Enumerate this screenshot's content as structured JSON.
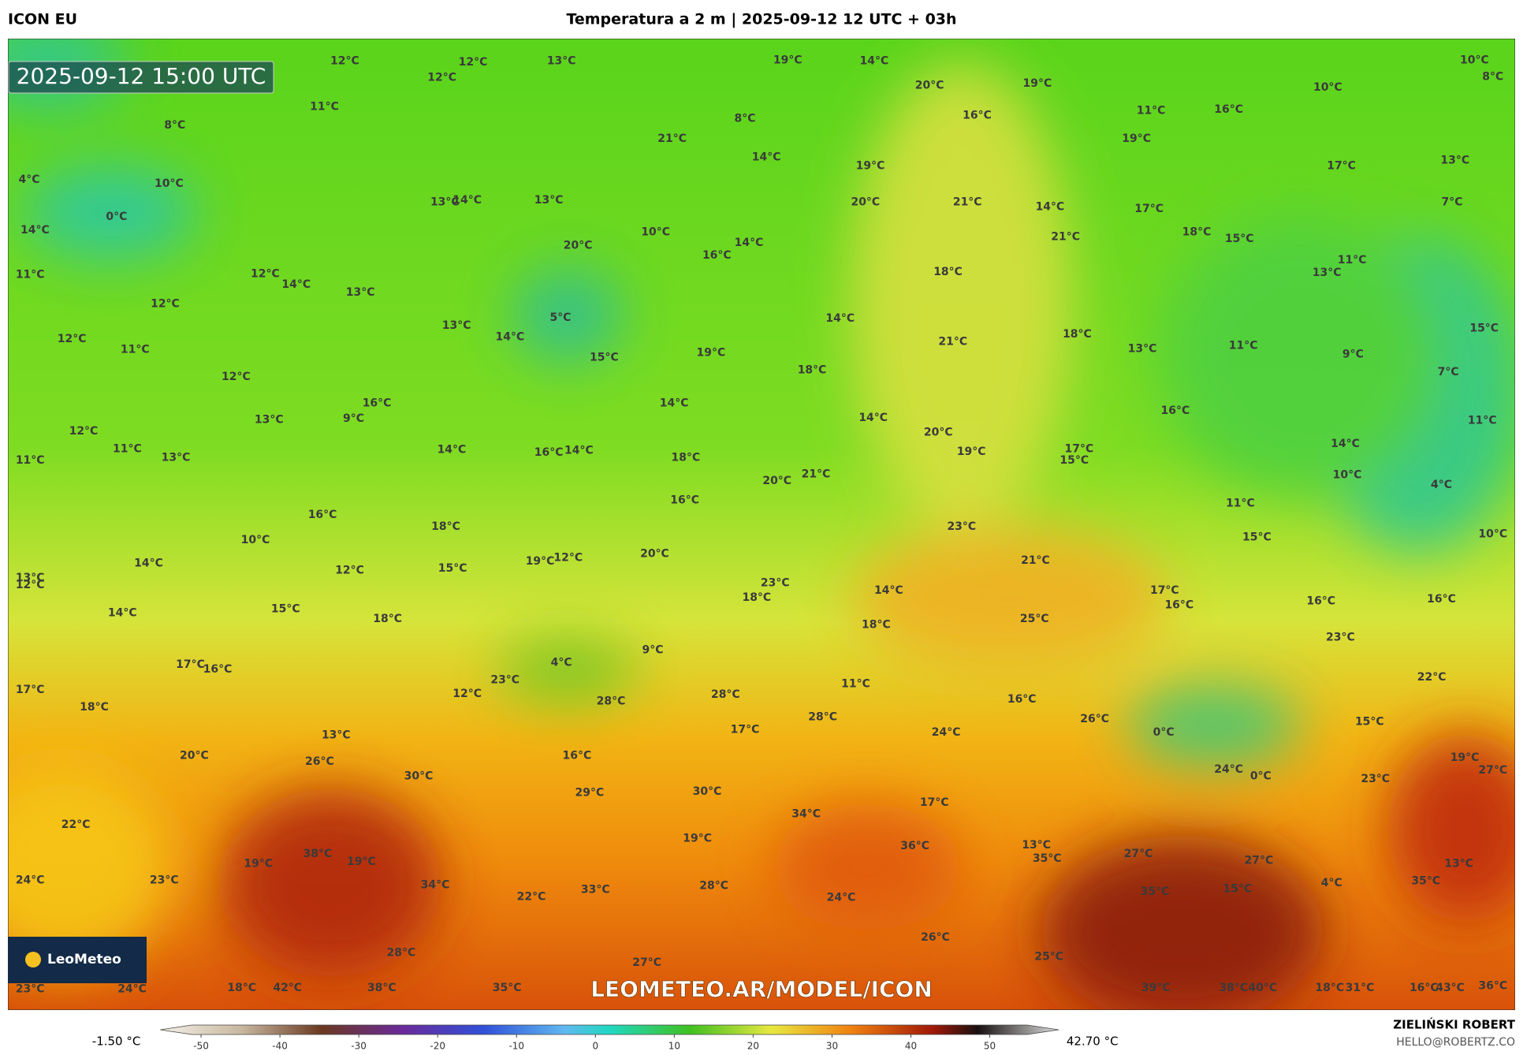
{
  "header": {
    "model": "ICON EU",
    "title": "Temperatura a 2 m | 2025-09-12 12 UTC + 03h"
  },
  "map": {
    "timestamp": "2025-09-12 15:00 UTC",
    "watermark": "LEOMETEO.AR/MODEL/ICON",
    "logo": "LeoMeteo",
    "labels": [
      "12°C",
      "12°C",
      "12°C",
      "13°C",
      "11°C",
      "8°C",
      "10°C",
      "0°C",
      "4°C",
      "14°C",
      "11°C",
      "12°C",
      "14°C",
      "13°C",
      "12°C",
      "12°C",
      "11°C",
      "13°C",
      "14°C",
      "5°C",
      "12°C",
      "16°C",
      "13°C",
      "9°C",
      "12°C",
      "11°C",
      "13°C",
      "11°C",
      "14°C",
      "16°C",
      "14°C",
      "18°C",
      "16°C",
      "10°C",
      "18°C",
      "14°C",
      "12°C",
      "15°C",
      "19°C",
      "12°C",
      "20°C",
      "13°C",
      "12°C",
      "14°C",
      "15°C",
      "18°C",
      "17°C",
      "16°C",
      "17°C",
      "18°C",
      "4°C",
      "9°C",
      "23°C",
      "12°C",
      "28°C",
      "28°C",
      "17°C",
      "28°C",
      "11°C",
      "13°C",
      "26°C",
      "20°C",
      "30°C",
      "16°C",
      "29°C",
      "30°C",
      "34°C",
      "17°C",
      "24°C",
      "16°C",
      "26°C",
      "0°C",
      "24°C",
      "0°C",
      "23°C",
      "19°C",
      "27°C",
      "15°C",
      "22°C",
      "23°C",
      "16°C",
      "16°C",
      "22°C",
      "24°C",
      "23°C",
      "38°C",
      "19°C",
      "19°C",
      "34°C",
      "22°C",
      "33°C",
      "28°C",
      "19°C",
      "24°C",
      "36°C",
      "13°C",
      "35°C",
      "27°C",
      "35°C",
      "15°C",
      "27°C",
      "4°C",
      "13°C",
      "35°C",
      "28°C",
      "27°C",
      "26°C",
      "23°C",
      "24°C",
      "18°C",
      "42°C",
      "38°C",
      "35°C",
      "25°C",
      "39°C",
      "38°C",
      "40°C",
      "18°C",
      "31°C",
      "16°C",
      "43°C",
      "36°C",
      "19°C",
      "14°C",
      "20°C",
      "19°C",
      "16°C",
      "11°C",
      "16°C",
      "10°C",
      "10°C",
      "8°C",
      "8°C",
      "21°C",
      "14°C",
      "19°C",
      "20°C",
      "21°C",
      "13°C",
      "14°C",
      "13°C",
      "14°C",
      "17°C",
      "21°C",
      "19°C",
      "17°C",
      "13°C",
      "7°C",
      "18°C",
      "15°C",
      "10°C",
      "20°C",
      "14°C",
      "16°C",
      "18°C",
      "11°C",
      "13°C",
      "14°C",
      "21°C",
      "18°C",
      "13°C",
      "11°C",
      "15°C",
      "19°C",
      "15°C",
      "18°C",
      "9°C",
      "7°C",
      "14°C",
      "14°C",
      "20°C",
      "19°C",
      "16°C",
      "11°C",
      "17°C",
      "15°C",
      "14°C",
      "10°C",
      "4°C",
      "20°C",
      "21°C",
      "16°C",
      "11°C",
      "15°C",
      "10°C",
      "23°C",
      "21°C",
      "23°C",
      "18°C",
      "14°C",
      "17°C",
      "16°C",
      "25°C",
      "18°C"
    ]
  },
  "legend": {
    "min_label": "-1.50 °C",
    "max_label": "42.70 °C",
    "ticks": [
      -50,
      -40,
      -30,
      -20,
      -10,
      0,
      10,
      20,
      30,
      40,
      50
    ]
  },
  "credit": {
    "author": "ZIELIŃSKI ROBERT",
    "email": "HELLO@ROBERTZ.CO"
  }
}
